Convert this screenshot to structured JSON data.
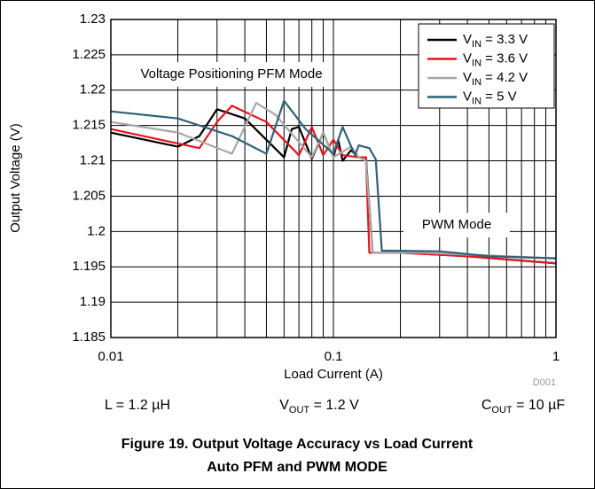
{
  "chart_data": {
    "type": "line",
    "xlabel": "Load Current (A)",
    "ylabel": "Output Voltage (V)",
    "xscale": "log",
    "xlim": [
      0.01,
      1
    ],
    "xticks": [
      0.01,
      0.1,
      1
    ],
    "minor_xgrid": [
      0.02,
      0.03,
      0.04,
      0.05,
      0.06,
      0.07,
      0.08,
      0.09,
      0.2,
      0.3,
      0.4,
      0.5,
      0.6,
      0.7,
      0.8,
      0.9
    ],
    "ylim": [
      1.185,
      1.23
    ],
    "yticks": [
      1.185,
      1.19,
      1.195,
      1.2,
      1.205,
      1.21,
      1.215,
      1.22,
      1.225,
      1.23
    ],
    "grid": true,
    "legend": "upper right",
    "series": [
      {
        "name": "VIN = 3.3 V",
        "color": "#000000",
        "x": [
          0.01,
          0.02,
          0.025,
          0.03,
          0.04,
          0.06,
          0.065,
          0.07,
          0.08,
          0.09,
          0.1,
          0.105,
          0.11,
          0.12,
          0.13,
          0.14,
          0.15,
          0.2,
          0.4,
          1
        ],
        "values": [
          1.214,
          1.212,
          1.2135,
          1.2173,
          1.216,
          1.2105,
          1.2145,
          1.2148,
          1.2103,
          1.214,
          1.2105,
          1.213,
          1.21,
          1.2115,
          1.2105,
          1.2105,
          1.197,
          1.197,
          1.1965,
          1.1955
        ]
      },
      {
        "name": "VIN = 3.6 V",
        "color": "#e8141c",
        "x": [
          0.01,
          0.025,
          0.03,
          0.035,
          0.05,
          0.07,
          0.08,
          0.09,
          0.1,
          0.11,
          0.13,
          0.14,
          0.145,
          0.2,
          0.4,
          1
        ],
        "values": [
          1.2145,
          1.2118,
          1.2155,
          1.2178,
          1.2155,
          1.2108,
          1.2148,
          1.2108,
          1.213,
          1.2108,
          1.2105,
          1.2105,
          1.197,
          1.197,
          1.1965,
          1.1955
        ]
      },
      {
        "name": "VIN = 4.2 V",
        "color": "#a8a8a8",
        "x": [
          0.01,
          0.02,
          0.035,
          0.045,
          0.055,
          0.08,
          0.09,
          0.1,
          0.12,
          0.13,
          0.14,
          0.15,
          0.25,
          1
        ],
        "values": [
          1.2155,
          1.214,
          1.211,
          1.2182,
          1.2165,
          1.2105,
          1.214,
          1.2105,
          1.212,
          1.2105,
          1.21,
          1.197,
          1.197,
          1.1962
        ]
      },
      {
        "name": "VIN = 5 V",
        "color": "#2f6177",
        "x": [
          0.01,
          0.02,
          0.035,
          0.05,
          0.06,
          0.075,
          0.1,
          0.11,
          0.125,
          0.13,
          0.145,
          0.155,
          0.165,
          0.3,
          0.5,
          1
        ],
        "values": [
          1.217,
          1.216,
          1.2135,
          1.211,
          1.2185,
          1.2145,
          1.211,
          1.2148,
          1.2108,
          1.2122,
          1.2118,
          1.2102,
          1.1973,
          1.1972,
          1.1965,
          1.1962
        ]
      }
    ],
    "annotations": [
      "Voltage Positioning PFM Mode",
      "PWM Mode"
    ],
    "figure_id": "D001",
    "conditions": [
      "L = 1.2 µH",
      "VOUT = 1.2 V",
      "COUT = 10 µF"
    ],
    "caption": [
      "Figure 19. Output Voltage Accuracy vs Load Current",
      "Auto PFM and PWM MODE"
    ]
  }
}
